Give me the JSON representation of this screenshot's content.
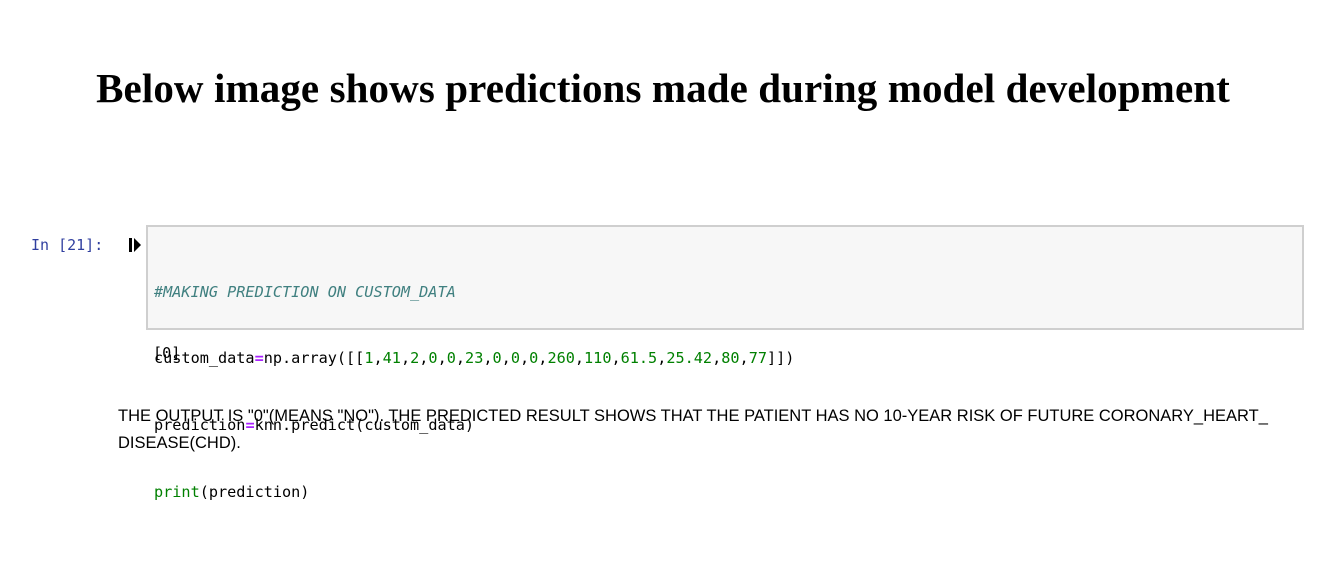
{
  "page": {
    "title": "Below image shows predictions made during model development"
  },
  "cell": {
    "prompt": "In [21]:",
    "run_icon": "step-forward-icon",
    "code": {
      "line1": "#MAKING PREDICTION ON CUSTOM_DATA",
      "line2": {
        "var": "custom_data",
        "op": "=",
        "func": "np.array([[",
        "n1": "1",
        "n2": "41",
        "n3": "2",
        "n4": "0",
        "n5": "0",
        "n6": "23",
        "n7": "0",
        "n8": "0",
        "n9": "0",
        "n10": "260",
        "n11": "110",
        "n12": "61.5",
        "n13": "25.42",
        "n14": "80",
        "n15": "77",
        "comma": ",",
        "close": "]])"
      },
      "line3": {
        "var": "prediction",
        "op": "=",
        "rest": "knn.predict(custom_data)"
      },
      "line4": {
        "builtin": "print",
        "rest": "(prediction)"
      }
    },
    "output": "[0]"
  },
  "explanation": "THE OUTPUT IS \"0\"(MEANS \"NO\"). THE PREDICTED RESULT SHOWS THAT THE PATIENT HAS NO 10-YEAR RISK OF FUTURE CORONARY_HEART_ DISEASE(CHD).",
  "colors": {
    "prompt": "#303F9F",
    "comment": "#408080",
    "operator": "#AA22FF",
    "number": "#008000",
    "cell_background": "#f7f7f7",
    "cell_border": "#cfcfcf"
  }
}
